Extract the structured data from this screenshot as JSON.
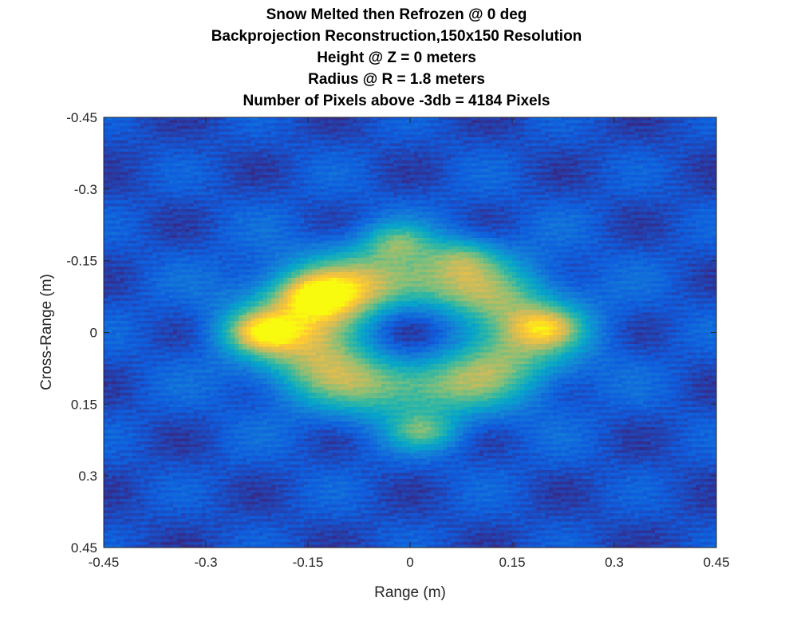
{
  "chart_data": {
    "type": "heatmap",
    "title_lines": [
      "Snow Melted then Refrozen @ 0 deg",
      "Backprojection Reconstruction,150x150 Resolution",
      "Height @ Z = 0 meters",
      "Radius @ R = 1.8 meters",
      "Number of Pixels above -3db = 4184 Pixels"
    ],
    "xlabel": "Range (m)",
    "ylabel": "Cross-Range (m)",
    "xlim": [
      -0.45,
      0.45
    ],
    "ylim": [
      -0.45,
      0.45
    ],
    "y_direction": "reversed",
    "xticks": [
      -0.45,
      -0.3,
      -0.15,
      0,
      0.15,
      0.3,
      0.45
    ],
    "xtick_labels": [
      "-0.45",
      "-0.3",
      "-0.15",
      "0",
      "0.15",
      "0.3",
      "0.45"
    ],
    "yticks": [
      -0.45,
      -0.3,
      -0.15,
      0,
      0.15,
      0.3,
      0.45
    ],
    "ytick_labels": [
      "-0.45",
      "-0.3",
      "-0.15",
      "0",
      "0.15",
      "0.3",
      "0.45"
    ],
    "resolution": [
      150,
      150
    ],
    "colormap": "parula",
    "colormap_stops": [
      "#352a87",
      "#0f5cdd",
      "#1481d6",
      "#06a4ca",
      "#2eb7a4",
      "#87bf77",
      "#d1bb59",
      "#fec832",
      "#f9fb0e"
    ],
    "background_level": 0.15,
    "ring_features": [
      {
        "cx": 0.0,
        "cy": 0.0,
        "radius": 0.15,
        "width": 0.07,
        "intensity": 0.55
      },
      {
        "cx": -0.11,
        "cy": -0.04,
        "radius": 0.0,
        "width": 0.09,
        "intensity": 0.3
      }
    ],
    "hotspots": [
      {
        "x": -0.22,
        "y": 0.0,
        "intensity": 0.95
      },
      {
        "x": 0.2,
        "y": -0.01,
        "intensity": 0.85
      },
      {
        "x": 0.02,
        "y": 0.21,
        "intensity": 0.85
      },
      {
        "x": -0.14,
        "y": -0.08,
        "intensity": 0.8
      },
      {
        "x": -0.02,
        "y": -0.19,
        "intensity": 0.8
      },
      {
        "x": 0.08,
        "y": -0.16,
        "intensity": 0.72
      }
    ],
    "null_center": {
      "x": 0.0,
      "y": 0.0,
      "radius": 0.075,
      "level": 0.08
    },
    "grid": false
  }
}
